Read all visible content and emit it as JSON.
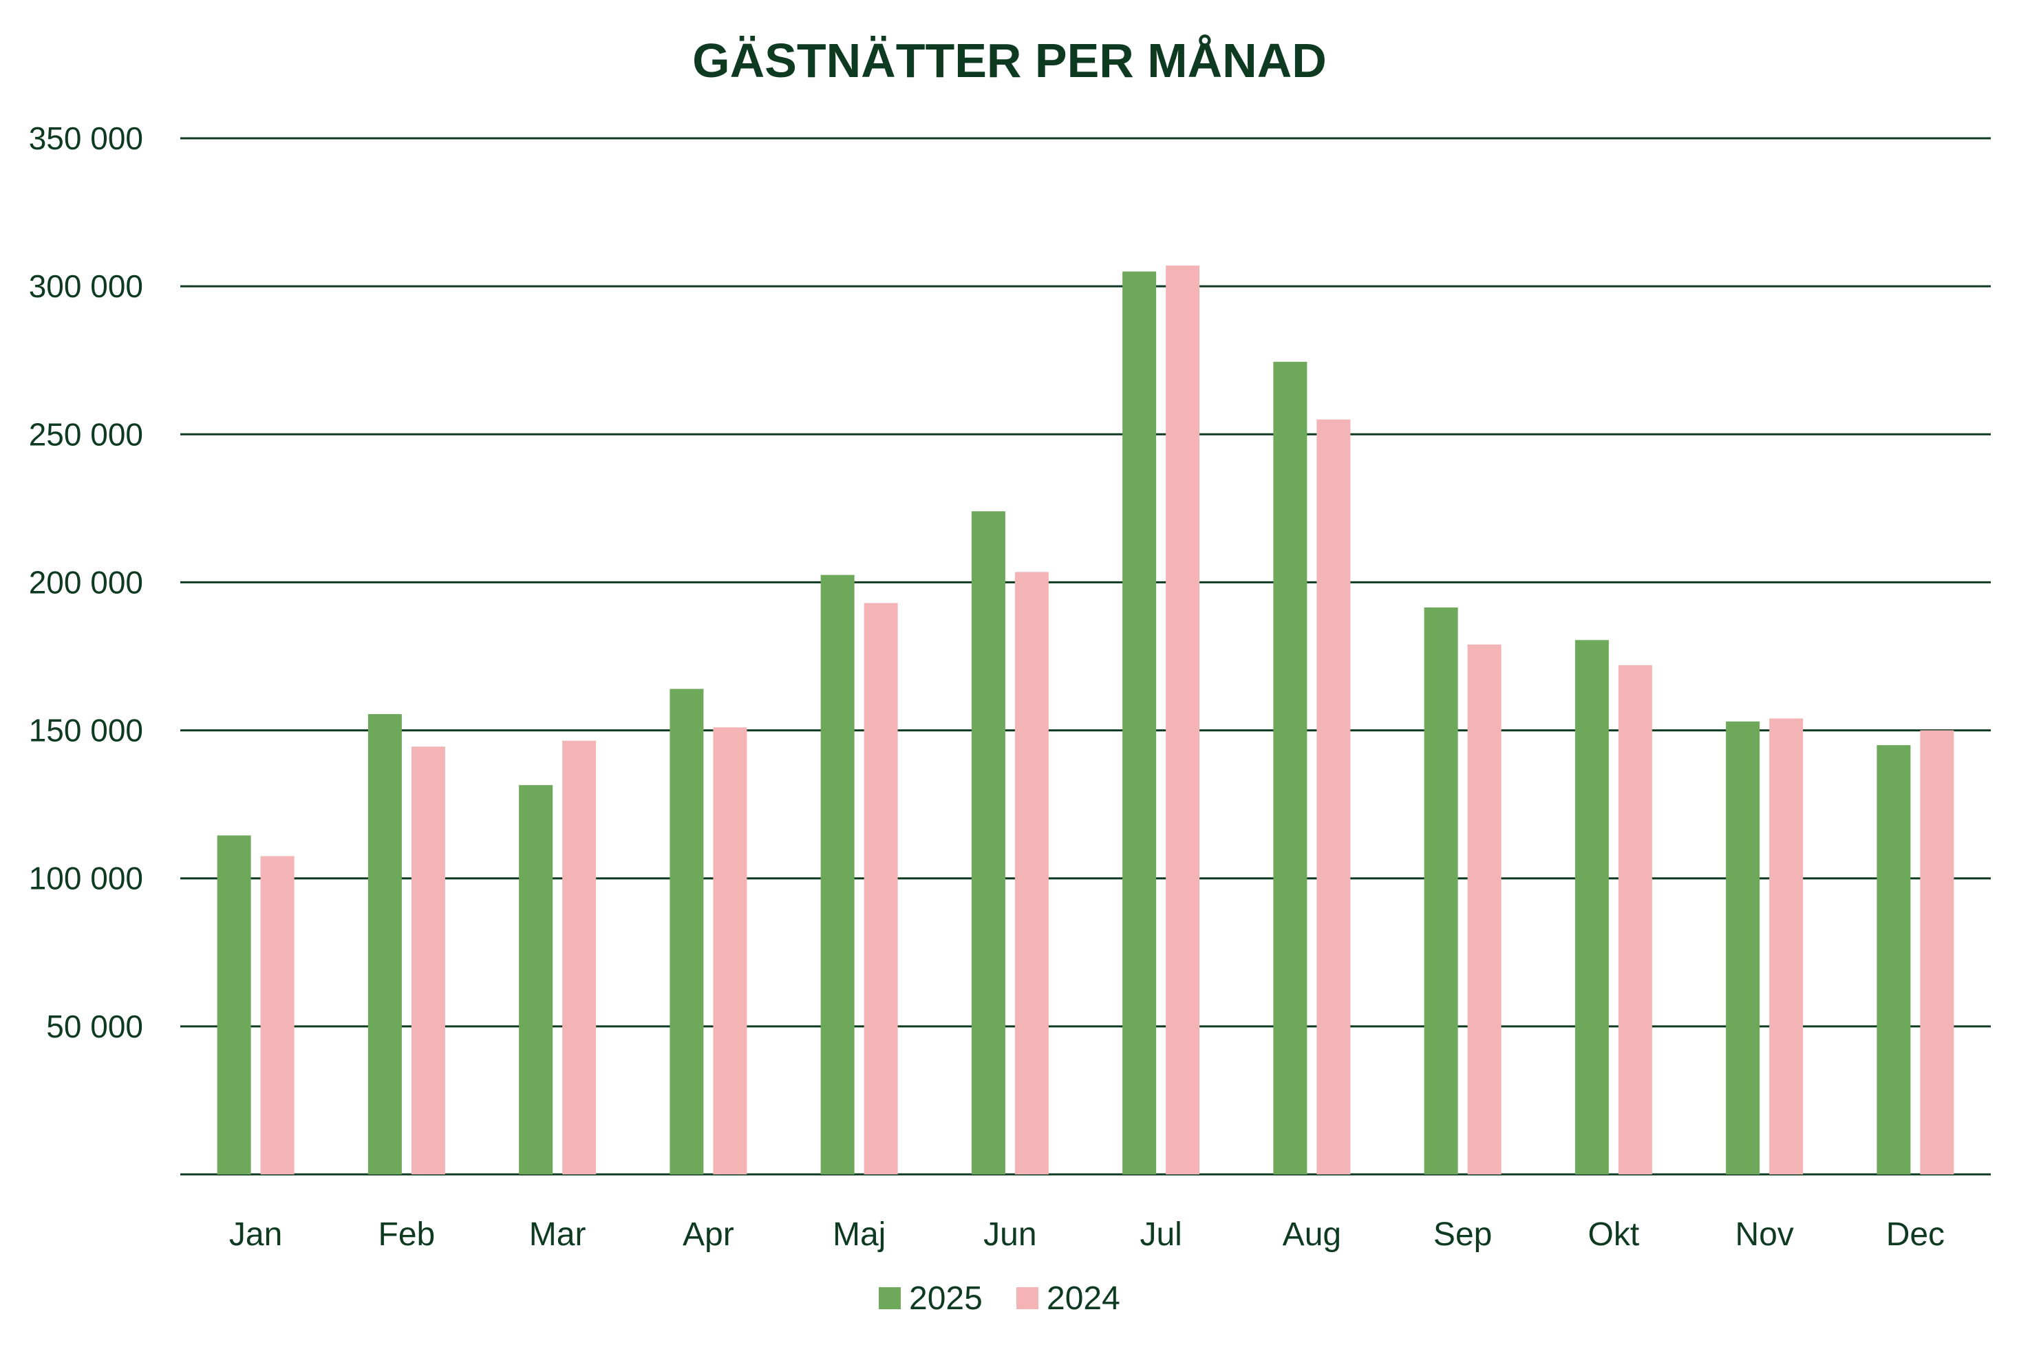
{
  "chart_data": {
    "type": "bar",
    "title": "GÄSTNÄTTER PER MÅNAD",
    "xlabel": "",
    "ylabel": "",
    "categories": [
      "Jan",
      "Feb",
      "Mar",
      "Apr",
      "Maj",
      "Jun",
      "Jul",
      "Aug",
      "Sep",
      "Okt",
      "Nov",
      "Dec"
    ],
    "series": [
      {
        "name": "2025",
        "color": "#6ea85a",
        "values": [
          114500,
          155500,
          131500,
          164000,
          202500,
          224000,
          305000,
          274500,
          191500,
          180500,
          153000,
          145000
        ]
      },
      {
        "name": "2024",
        "color": "#f4b3b5",
        "values": [
          107500,
          144500,
          146500,
          151000,
          193000,
          203500,
          307000,
          255000,
          179000,
          172000,
          154000,
          150000
        ]
      }
    ],
    "ylim": [
      0,
      350000
    ],
    "yticks": [
      50000,
      100000,
      150000,
      200000,
      250000,
      300000,
      350000
    ],
    "ytick_labels": [
      "50 000",
      "100 000",
      "150 000",
      "200 000",
      "250 000",
      "300 000",
      "350 000"
    ],
    "grid": true,
    "legend_position": "bottom-center"
  },
  "colors": {
    "text": "#0e3a22",
    "gridline": "#0e3a22"
  }
}
